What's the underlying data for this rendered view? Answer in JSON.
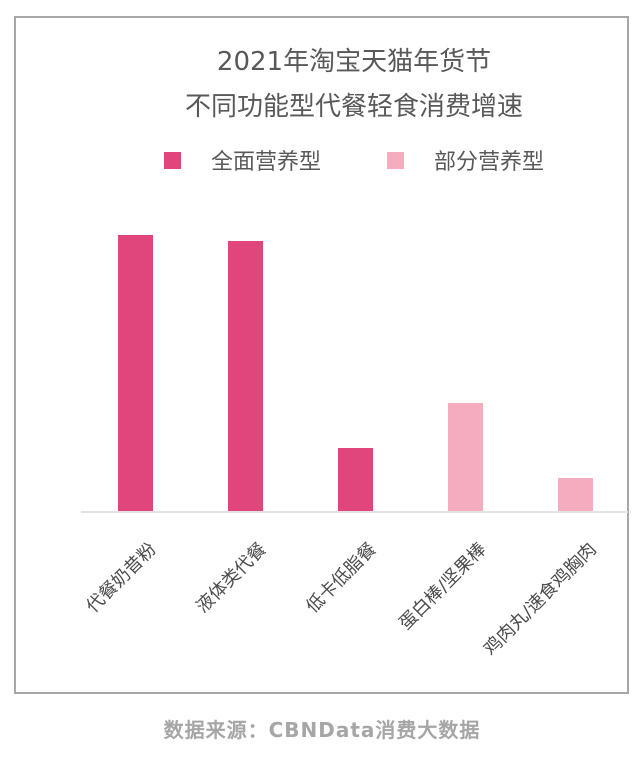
{
  "title": {
    "line1": "2021年淘宝天猫年货节",
    "line2": "不同功能型代餐轻食消费增速"
  },
  "legend": {
    "items": [
      {
        "label": "全面营养型",
        "color": "#e0457b"
      },
      {
        "label": "部分营养型",
        "color": "#f5acbe"
      }
    ]
  },
  "source": "数据来源：CBNData消费大数据",
  "colors": {
    "frame_border": "#a7a7a7",
    "axis_line": "#e3e3e3",
    "title_text": "#595959",
    "category_text": "#4c4c4c",
    "source_text": "#a6a6a6"
  },
  "chart_data": {
    "type": "bar",
    "title": "2021年淘宝天猫年货节不同功能型代餐轻食消费增速",
    "categories": [
      "代餐奶昔粉",
      "液体类代餐",
      "低卡低脂餐",
      "蛋白棒/坚果棒",
      "鸡肉丸/速食鸡胸肉"
    ],
    "series": [
      {
        "name": "全面营养型",
        "color": "#e0457b"
      },
      {
        "name": "部分营养型",
        "color": "#f5acbe"
      }
    ],
    "bars": [
      {
        "category": "代餐奶昔粉",
        "series": "全面营养型",
        "value": 100
      },
      {
        "category": "液体类代餐",
        "series": "全面营养型",
        "value": 98
      },
      {
        "category": "低卡低脂餐",
        "series": "全面营养型",
        "value": 23
      },
      {
        "category": "蛋白棒/坚果棒",
        "series": "部分营养型",
        "value": 39
      },
      {
        "category": "鸡肉丸/速食鸡胸肉",
        "series": "部分营养型",
        "value": 12
      }
    ],
    "value_note": "no numeric axis or data labels shown; values are relative bar heights as % of tallest bar",
    "ylim": [
      0,
      105
    ],
    "xlabel": "",
    "ylabel": "",
    "grid": false,
    "legend_position": "top"
  }
}
